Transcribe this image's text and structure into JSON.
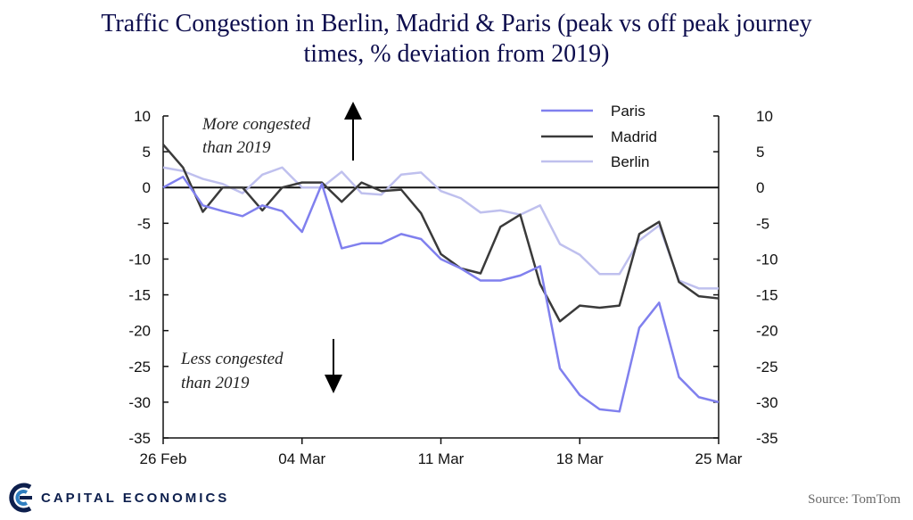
{
  "title_line1": "Traffic Congestion in Berlin, Madrid & Paris (peak vs off peak journey",
  "title_line2": "times, % deviation from 2019)",
  "annotations": {
    "more_line1": "More congested",
    "more_line2": "than 2019",
    "less_line1": "Less congested",
    "less_line2": "than 2019"
  },
  "brand_name": "CAPITAL ECONOMICS",
  "source": "Source: TomTom",
  "colors": {
    "paris": "#8080ee",
    "madrid": "#3a3a3a",
    "berlin": "#bfc0ee",
    "axis": "#111111"
  },
  "chart_data": {
    "type": "line",
    "title": "Traffic Congestion in Berlin, Madrid & Paris (peak vs off peak journey times, % deviation from 2019)",
    "xlabel": "",
    "ylabel": "",
    "ylim": [
      -35,
      10
    ],
    "yticks": [
      "10",
      "5",
      "0",
      "-5",
      "-10",
      "-15",
      "-20",
      "-25",
      "-30",
      "-35"
    ],
    "ytick_values": [
      10,
      5,
      0,
      -5,
      -10,
      -15,
      -20,
      -25,
      -30,
      -35
    ],
    "x_range": [
      0,
      28
    ],
    "xticks": [
      {
        "label": "26 Feb",
        "day": 0
      },
      {
        "label": "04 Mar",
        "day": 7
      },
      {
        "label": "11 Mar",
        "day": 14
      },
      {
        "label": "18 Mar",
        "day": 21
      },
      {
        "label": "25 Mar",
        "day": 28
      }
    ],
    "x": [
      0,
      1,
      2,
      3,
      4,
      5,
      6,
      7,
      8,
      9,
      10,
      11,
      12,
      13,
      14,
      15,
      16,
      17,
      18,
      19,
      20,
      21,
      22,
      23,
      24,
      25,
      26,
      27,
      28
    ],
    "series": [
      {
        "key": "paris",
        "name": "Paris",
        "values": [
          0,
          1.5,
          -2.5,
          -3.3,
          -4,
          -2.5,
          -3.3,
          -6.2,
          0.5,
          -8.5,
          -7.8,
          -7.8,
          -6.5,
          -7.2,
          -10,
          -11.3,
          -13,
          -13,
          -12.3,
          -11,
          -25.3,
          -29,
          -31,
          -31.3,
          -19.6,
          -16.1,
          -26.5,
          -29.3,
          -30
        ]
      },
      {
        "key": "madrid",
        "name": "Madrid",
        "values": [
          6,
          2.8,
          -3.4,
          0,
          0,
          -3.2,
          0,
          0.7,
          0.7,
          -2,
          0.7,
          -0.5,
          -0.3,
          -3.6,
          -9.3,
          -11.3,
          -12,
          -5.5,
          -3.8,
          -13.5,
          -18.7,
          -16.5,
          -16.8,
          -16.5,
          -6.5,
          -4.8,
          -13.2,
          -15.2,
          -15.5
        ]
      },
      {
        "key": "berlin",
        "name": "Berlin",
        "values": [
          2.8,
          2.3,
          1.2,
          0.5,
          -0.8,
          1.8,
          2.8,
          0,
          0,
          2.2,
          -0.8,
          -1,
          1.8,
          2.1,
          -0.5,
          -1.5,
          -3.5,
          -3.2,
          -3.8,
          -2.5,
          -7.9,
          -9.4,
          -12.1,
          -12.1,
          -7.4,
          -5.3,
          -13,
          -14.1,
          -14.1
        ]
      }
    ],
    "legend_position": "top-right"
  }
}
